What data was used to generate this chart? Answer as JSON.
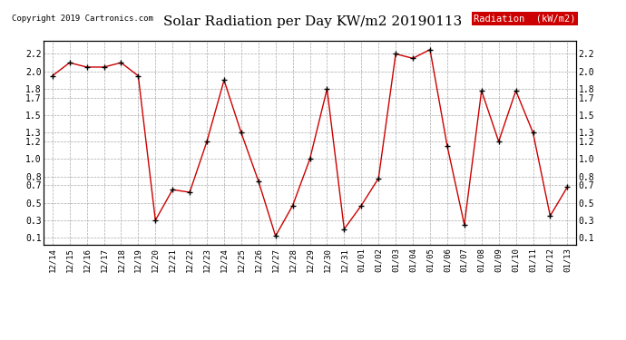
{
  "title": "Solar Radiation per Day KW/m2 20190113",
  "copyright": "Copyright 2019 Cartronics.com",
  "legend_label": "Radiation  (kW/m2)",
  "dates": [
    "12/14",
    "12/15",
    "12/16",
    "12/17",
    "12/18",
    "12/19",
    "12/20",
    "12/21",
    "12/22",
    "12/23",
    "12/24",
    "12/25",
    "12/26",
    "12/27",
    "12/28",
    "12/29",
    "12/30",
    "12/31",
    "01/01",
    "01/02",
    "01/03",
    "01/04",
    "01/05",
    "01/06",
    "01/07",
    "01/08",
    "01/09",
    "01/10",
    "01/11",
    "01/12",
    "01/13"
  ],
  "values": [
    1.95,
    2.1,
    2.05,
    2.05,
    2.1,
    1.95,
    0.3,
    0.65,
    0.62,
    1.2,
    1.9,
    1.3,
    0.75,
    0.12,
    0.47,
    1.0,
    1.8,
    0.2,
    0.47,
    0.78,
    2.2,
    2.15,
    2.25,
    1.15,
    0.25,
    1.78,
    1.2,
    1.78,
    1.3,
    0.35,
    0.68
  ],
  "line_color": "#cc0000",
  "marker_color": "#000000",
  "background_color": "#ffffff",
  "grid_color": "#aaaaaa",
  "legend_bg": "#cc0000",
  "legend_text_color": "#ffffff",
  "yticks": [
    0.1,
    0.3,
    0.5,
    0.7,
    0.8,
    1.0,
    1.2,
    1.3,
    1.5,
    1.7,
    1.8,
    2.0,
    2.2
  ],
  "ylim": [
    0.02,
    2.35
  ]
}
